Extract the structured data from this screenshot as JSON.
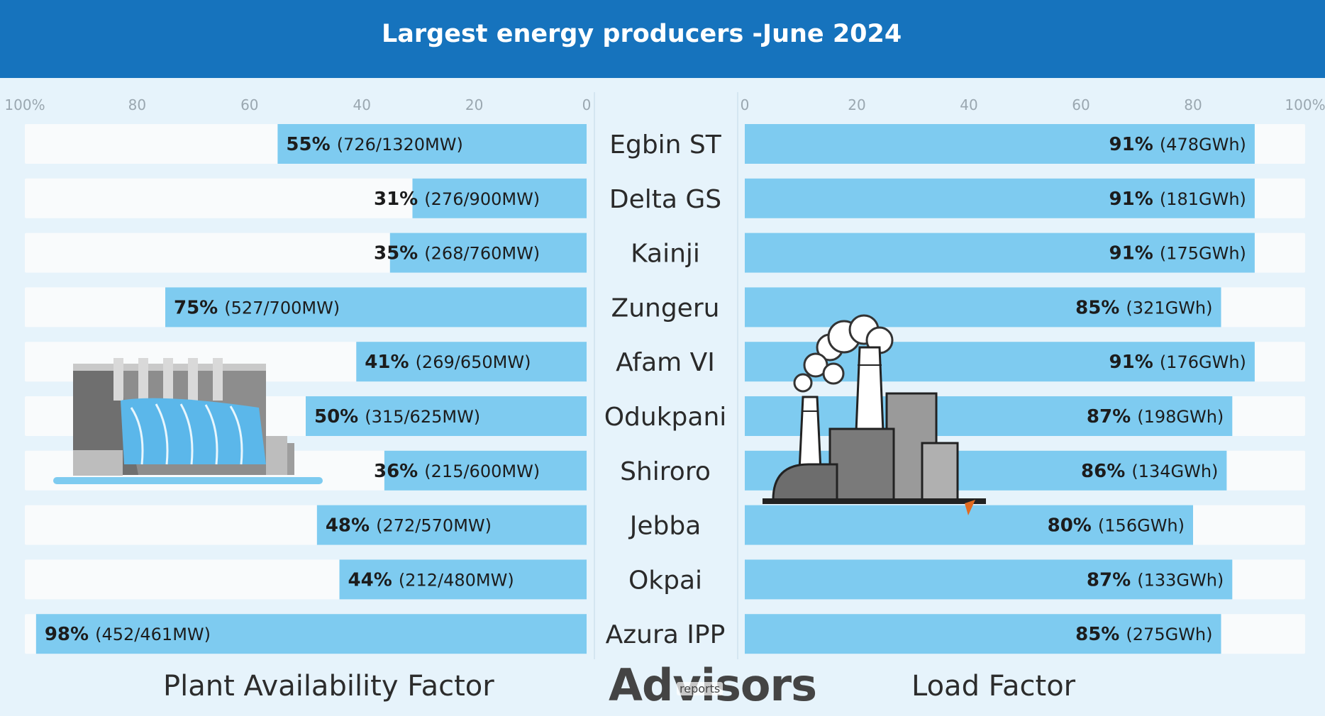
{
  "header": {
    "title": "Largest energy producers -June 2024"
  },
  "colors": {
    "header_bg": "#1673bd",
    "bar": "#7ecbf0",
    "track": "#f9fbfc",
    "background": "#e6f3fb"
  },
  "chart_data": {
    "type": "bar",
    "categories": [
      "Egbin ST",
      "Delta GS",
      "Kainji",
      "Zungeru",
      "Afam VI",
      "Odukpani",
      "Shiroro",
      "Jebba",
      "Okpai",
      "Azura IPP"
    ],
    "series": [
      {
        "name": "Plant Availability Factor",
        "values": [
          55,
          31,
          35,
          75,
          41,
          50,
          36,
          48,
          44,
          98
        ],
        "labels": [
          "55%",
          "31%",
          "35%",
          "75%",
          "41%",
          "50%",
          "36%",
          "48%",
          "44%",
          "98%"
        ],
        "details": [
          "(726/1320MW)",
          "(276/900MW)",
          "(268/760MW)",
          "(527/700MW)",
          "(269/650MW)",
          "(315/625MW)",
          "(215/600MW)",
          "(272/570MW)",
          "(212/480MW)",
          "(452/461MW)"
        ],
        "axis_ticks": [
          "100%",
          "80",
          "60",
          "40",
          "20",
          "0"
        ],
        "xlim": [
          100,
          0
        ]
      },
      {
        "name": "Load Factor",
        "values": [
          91,
          91,
          91,
          85,
          91,
          87,
          86,
          80,
          87,
          85
        ],
        "labels": [
          "91%",
          "91%",
          "91%",
          "85%",
          "91%",
          "87%",
          "86%",
          "80%",
          "87%",
          "85%"
        ],
        "details": [
          "(478GWh)",
          "(181GWh)",
          "(175GWh)",
          "(321GWh)",
          "(176GWh)",
          "(198GWh)",
          "(134GWh)",
          "(156GWh)",
          "(133GWh)",
          "(275GWh)"
        ],
        "axis_ticks": [
          "0",
          "20",
          "40",
          "60",
          "80",
          "100%"
        ],
        "xlim": [
          0,
          100
        ]
      }
    ],
    "legend": "none",
    "grid": false
  },
  "footer": {
    "left_title": "Plant Availability Factor",
    "right_title": "Load Factor",
    "brand": "Advisors",
    "brand_sub": "reports"
  },
  "icons": {
    "left": "hydro-dam-icon",
    "right": "thermal-power-plant-icon"
  }
}
